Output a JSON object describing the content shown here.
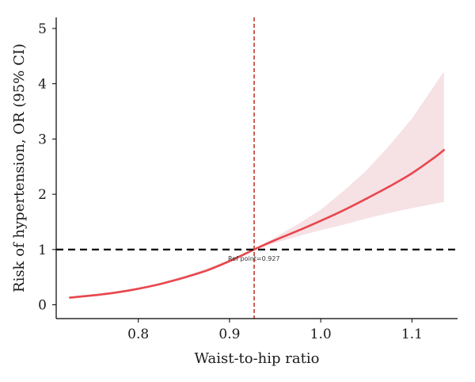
{
  "chart_data": {
    "type": "line",
    "xlabel": "Waist-to-hip ratio",
    "ylabel": "Risk of hypertension, OR (95% CI)",
    "xlim": [
      0.71,
      1.15
    ],
    "ylim": [
      -0.25,
      5.2
    ],
    "x_ticks": [
      0.8,
      0.9,
      1.0,
      1.1
    ],
    "x_tick_labels": [
      "0.8",
      "0.9",
      "1.0",
      "1.1"
    ],
    "y_ticks": [
      0,
      1,
      2,
      3,
      4,
      5
    ],
    "y_tick_labels": [
      "0",
      "1",
      "2",
      "3",
      "4",
      "5"
    ],
    "grid": false,
    "series": [
      {
        "role": "estimate",
        "color": "#e8474d",
        "x": [
          0.725,
          0.75,
          0.775,
          0.8,
          0.825,
          0.85,
          0.875,
          0.9,
          0.927,
          0.95,
          0.975,
          1.0,
          1.025,
          1.05,
          1.075,
          1.1,
          1.125,
          1.135
        ],
        "y": [
          0.13,
          0.17,
          0.22,
          0.29,
          0.38,
          0.49,
          0.62,
          0.79,
          1.0,
          1.17,
          1.34,
          1.52,
          1.71,
          1.92,
          2.14,
          2.38,
          2.67,
          2.8
        ],
        "lower": [
          0.11,
          0.15,
          0.2,
          0.27,
          0.36,
          0.47,
          0.6,
          0.77,
          1.0,
          1.12,
          1.24,
          1.35,
          1.45,
          1.56,
          1.66,
          1.75,
          1.83,
          1.86
        ],
        "upper": [
          0.15,
          0.19,
          0.24,
          0.31,
          0.4,
          0.52,
          0.65,
          0.82,
          1.0,
          1.22,
          1.46,
          1.72,
          2.06,
          2.43,
          2.88,
          3.37,
          3.98,
          4.22
        ]
      }
    ],
    "reference_line_h": {
      "y": 1,
      "style": "dashed",
      "color": "#000000"
    },
    "reference_line_v": {
      "x": 0.927,
      "style": "dashed",
      "color": "#c0392b"
    },
    "annotation": {
      "text": "Ref point=0.927",
      "x": 0.927,
      "y": 1
    },
    "band_color": "#f4d9de",
    "line_color": "#e8474d"
  }
}
